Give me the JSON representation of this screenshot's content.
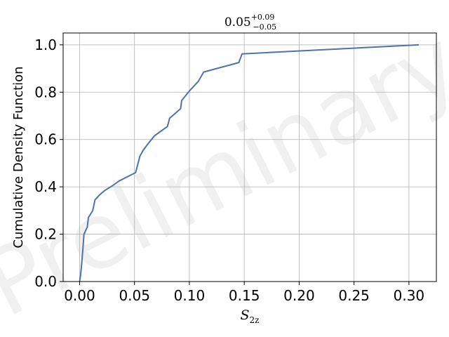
{
  "chart_data": {
    "type": "line",
    "title": {
      "base": "0.05",
      "sup": "+0.09",
      "sub": "−0.05"
    },
    "xlabel": {
      "base": "S",
      "sub": "2z"
    },
    "ylabel": "Cumulative Density Function",
    "watermark": "Preliminary",
    "xlim": [
      -0.015,
      0.325
    ],
    "ylim": [
      0.0,
      1.05
    ],
    "xticks": [
      0.0,
      0.05,
      0.1,
      0.15,
      0.2,
      0.25,
      0.3
    ],
    "xtick_labels": [
      "0.00",
      "0.05",
      "0.10",
      "0.15",
      "0.20",
      "0.25",
      "0.30"
    ],
    "yticks": [
      0.0,
      0.2,
      0.4,
      0.6,
      0.8,
      1.0
    ],
    "ytick_labels": [
      "0.0",
      "0.2",
      "0.4",
      "0.6",
      "0.8",
      "1.0"
    ],
    "grid": true,
    "line_color": "#4c72b0",
    "series": [
      {
        "x": [
          0.0,
          0.001,
          0.002,
          0.003,
          0.004,
          0.005,
          0.007,
          0.008,
          0.012,
          0.014,
          0.018,
          0.023,
          0.03,
          0.036,
          0.051,
          0.055,
          0.058,
          0.062,
          0.068,
          0.08,
          0.082,
          0.092,
          0.093,
          0.1,
          0.108,
          0.113,
          0.145,
          0.148,
          0.309
        ],
        "y": [
          0.0,
          0.03,
          0.08,
          0.14,
          0.2,
          0.21,
          0.23,
          0.27,
          0.3,
          0.345,
          0.365,
          0.385,
          0.405,
          0.425,
          0.46,
          0.53,
          0.555,
          0.58,
          0.615,
          0.655,
          0.69,
          0.73,
          0.765,
          0.805,
          0.845,
          0.885,
          0.925,
          0.962,
          1.0
        ]
      }
    ]
  }
}
